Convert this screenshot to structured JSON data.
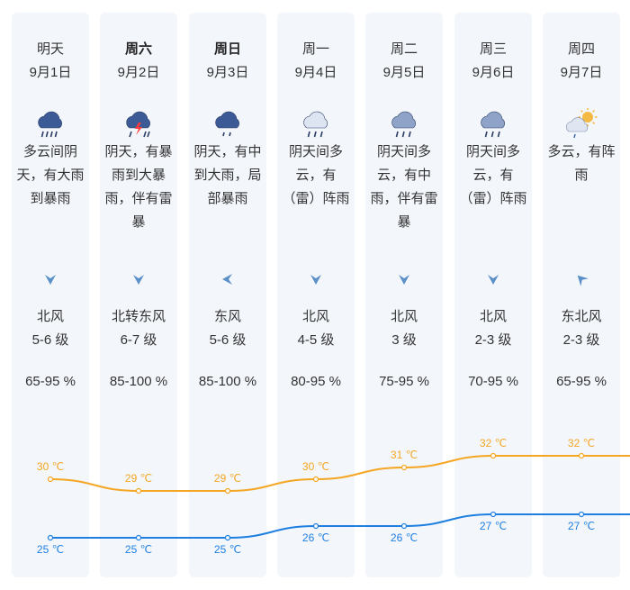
{
  "days": [
    {
      "day": "明天",
      "date": "9月1日",
      "bold": false,
      "icon": "heavy-rain-icon",
      "desc": [
        "多云间阴",
        "天，有大雨",
        "到暴雨"
      ],
      "wind_dir": "北风",
      "wind_level": "5-6 级",
      "wind_arrow": "down",
      "humidity": "65-95 %",
      "high": 30,
      "low": 25,
      "high_label": "30 ℃",
      "low_label": "25 ℃"
    },
    {
      "day": "周六",
      "date": "9月2日",
      "bold": true,
      "icon": "thunderstorm-icon",
      "desc": [
        "阴天，有暴",
        "雨到大暴",
        "雨，伴有雷",
        "暴"
      ],
      "wind_dir": "北转东风",
      "wind_level": "6-7 级",
      "wind_arrow": "down",
      "humidity": "85-100 %",
      "high": 29,
      "low": 25,
      "high_label": "29 ℃",
      "low_label": "25 ℃"
    },
    {
      "day": "周日",
      "date": "9月3日",
      "bold": true,
      "icon": "moderate-rain-icon",
      "desc": [
        "阴天，有中",
        "到大雨，局",
        "部暴雨"
      ],
      "wind_dir": "东风",
      "wind_level": "5-6 级",
      "wind_arrow": "left",
      "humidity": "85-100 %",
      "high": 29,
      "low": 25,
      "high_label": "29 ℃",
      "low_label": "25 ℃"
    },
    {
      "day": "周一",
      "date": "9月4日",
      "bold": false,
      "icon": "shower-icon",
      "desc": [
        "阴天间多",
        "云，有",
        "（雷）阵雨"
      ],
      "wind_dir": "北风",
      "wind_level": "4-5 级",
      "wind_arrow": "down",
      "humidity": "80-95 %",
      "high": 30,
      "low": 26,
      "high_label": "30 ℃",
      "low_label": "26 ℃"
    },
    {
      "day": "周二",
      "date": "9月5日",
      "bold": false,
      "icon": "rain-icon",
      "desc": [
        "阴天间多",
        "云，有中",
        "雨，伴有雷",
        "暴"
      ],
      "wind_dir": "北风",
      "wind_level": "3 级",
      "wind_arrow": "down",
      "humidity": "75-95 %",
      "high": 31,
      "low": 26,
      "high_label": "31 ℃",
      "low_label": "26 ℃"
    },
    {
      "day": "周三",
      "date": "9月6日",
      "bold": false,
      "icon": "rain-icon",
      "desc": [
        "阴天间多",
        "云，有",
        "（雷）阵雨"
      ],
      "wind_dir": "北风",
      "wind_level": "2-3 级",
      "wind_arrow": "down",
      "humidity": "70-95 %",
      "high": 32,
      "low": 27,
      "high_label": "32 ℃",
      "low_label": "27 ℃"
    },
    {
      "day": "周四",
      "date": "9月7日",
      "bold": false,
      "icon": "sun-shower-icon",
      "desc": [
        "多云，有阵",
        "雨"
      ],
      "wind_dir": "东北风",
      "wind_level": "2-3 级",
      "wind_arrow": "up-left",
      "humidity": "65-95 %",
      "high": 32,
      "low": 27,
      "high_label": "32 ℃",
      "low_label": "27 ℃"
    }
  ],
  "colors": {
    "high": "#f5a623",
    "low": "#1e7fe0",
    "card_bg": "#f3f6fb",
    "wind_arrow": "#5b8fc7"
  }
}
